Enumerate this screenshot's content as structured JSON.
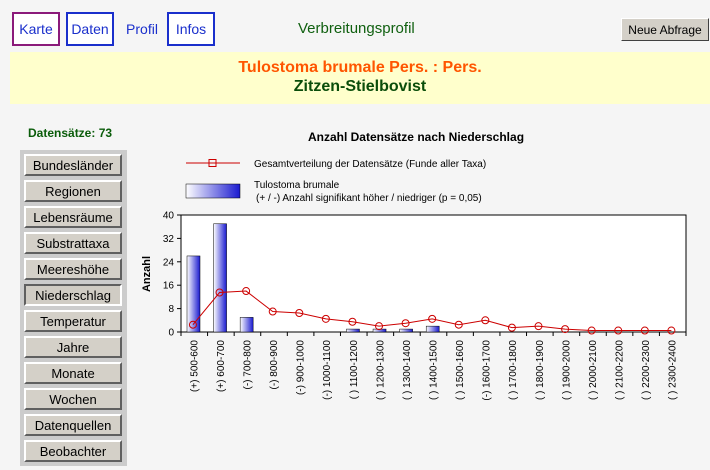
{
  "tabs": [
    {
      "label": "Karte"
    },
    {
      "label": "Daten"
    },
    {
      "label": "Profil"
    },
    {
      "label": "Infos"
    }
  ],
  "page_title": "Verbreitungsprofil",
  "new_query_label": "Neue Abfrage",
  "species": {
    "scientific": "Tulostoma brumale Pers. : Pers.",
    "common": "Zitzen-Stielbovist"
  },
  "records_label": "Datensätze: 73",
  "sidebar": {
    "items": [
      {
        "label": "Bundesländer"
      },
      {
        "label": "Regionen"
      },
      {
        "label": "Lebensräume"
      },
      {
        "label": "Substrattaxa"
      },
      {
        "label": "Meereshöhe"
      },
      {
        "label": "Niederschlag"
      },
      {
        "label": "Temperatur"
      },
      {
        "label": "Jahre"
      },
      {
        "label": "Monate"
      },
      {
        "label": "Wochen"
      },
      {
        "label": "Datenquellen"
      },
      {
        "label": "Beobachter"
      }
    ],
    "active_index": 5
  },
  "chart_data": {
    "type": "bar",
    "title": "Anzahl Datensätze nach Niederschlag",
    "ylabel": "Anzahl",
    "ylim": [
      0,
      40
    ],
    "yticks": [
      0,
      8,
      16,
      24,
      32,
      40
    ],
    "categories": [
      "(+) 500-600",
      "(+) 600-700",
      "(-) 700-800",
      "(-) 800-900",
      "(-) 900-1000",
      "(-) 1000-1100",
      "( ) 1100-1200",
      "( ) 1200-1300",
      "( ) 1300-1400",
      "( ) 1400-1500",
      "( ) 1500-1600",
      "(-) 1600-1700",
      "( ) 1700-1800",
      "( ) 1800-1900",
      "( ) 1900-2000",
      "( ) 2000-2100",
      "( ) 2100-2200",
      "( ) 2200-2300",
      "( ) 2300-2400"
    ],
    "series": [
      {
        "name": "Tulostoma brumale",
        "kind": "bar",
        "color": "#1a1ad0",
        "values": [
          26,
          37,
          5,
          0,
          0,
          0,
          1,
          1,
          1,
          2,
          0,
          0,
          0,
          0,
          0,
          0,
          0,
          0,
          0
        ]
      },
      {
        "name": "Gesamtverteilung der Datensätze (Funde aller Taxa)",
        "kind": "line",
        "color": "#cc0000",
        "values": [
          2.5,
          13.5,
          14,
          7,
          6.5,
          4.5,
          3.5,
          2,
          3,
          4.5,
          2.5,
          4,
          1.5,
          2,
          1,
          0.5,
          0.5,
          0.5,
          0.5
        ]
      }
    ],
    "legend_note": "(+ / -) Anzahl signifikant höher / niedriger (p = 0,05)",
    "grid": false,
    "legend_position": "top"
  }
}
